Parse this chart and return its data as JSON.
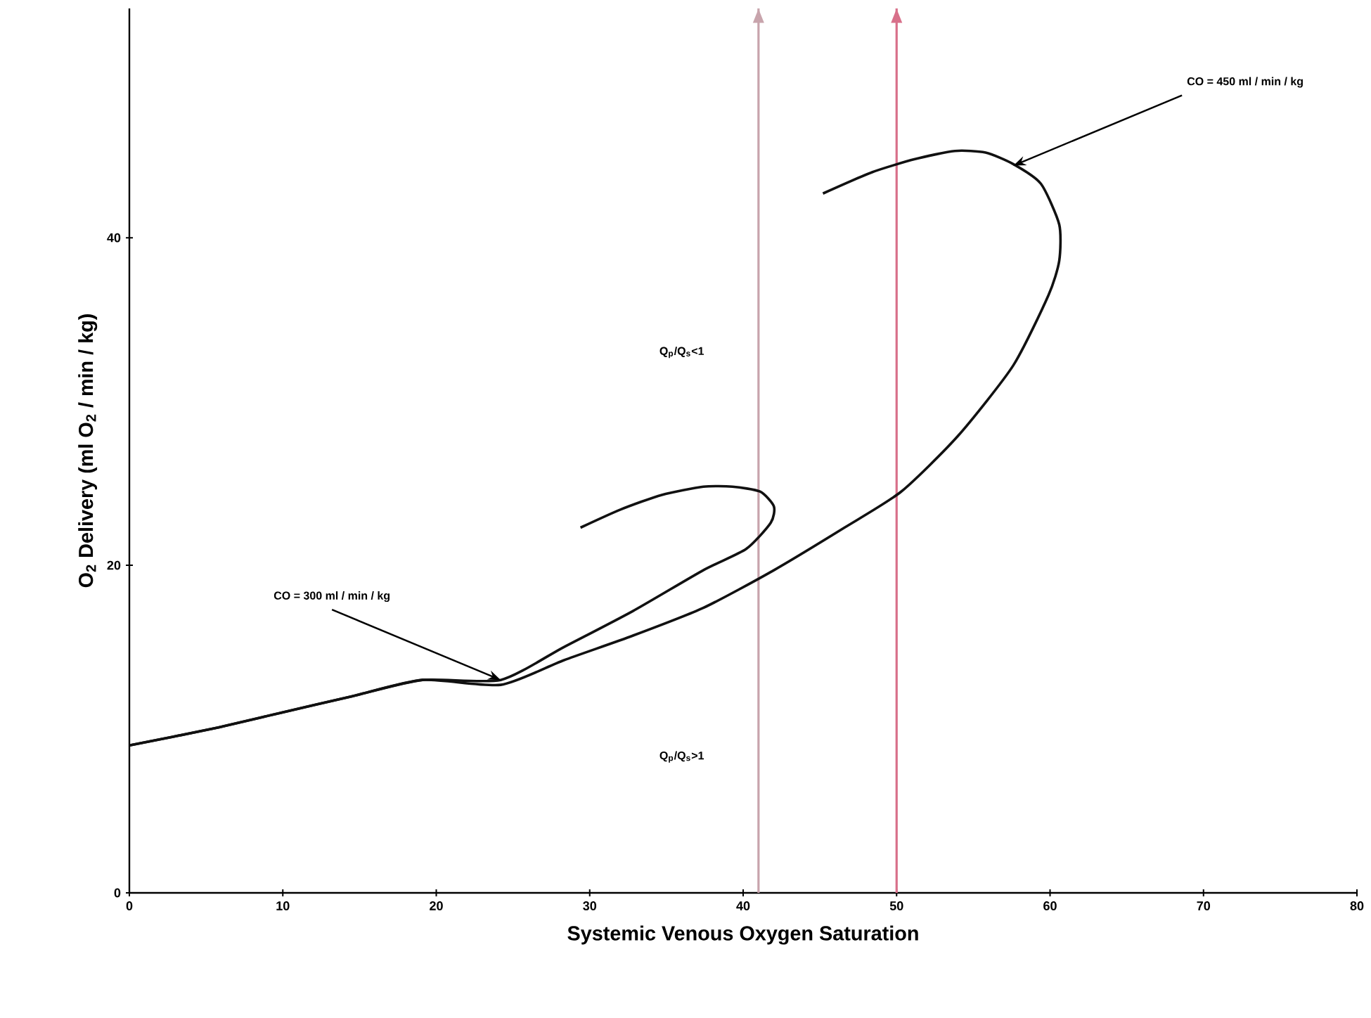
{
  "chart_data": {
    "type": "line",
    "xlabel": "Systemic Venous Oxygen Saturation",
    "ylabel": "O$_{2}$ Delivery (ml O$_{2}$ / min / kg)",
    "xlim": [
      0,
      80
    ],
    "ylim": [
      0,
      54
    ],
    "xticks": [
      0,
      10,
      20,
      30,
      40,
      50,
      60,
      70,
      80
    ],
    "yticks": [
      0,
      20,
      40
    ],
    "marker": "none",
    "line_style": "solid",
    "series": [
      {
        "color": "#111111",
        "x": [
          0,
          5.3,
          9.9,
          14.5,
          19.1,
          24.2,
          28.3,
          32.8,
          37.4,
          40.2,
          41.8,
          42.0,
          41.1,
          39.3,
          37.4,
          34.7,
          32.0,
          29.4
        ],
        "values": [
          9.0,
          10.0,
          11.0,
          12.0,
          13.0,
          13.0,
          15.0,
          17.2,
          19.7,
          21.0,
          22.6,
          23.6,
          24.5,
          24.8,
          24.8,
          24.3,
          23.4,
          22.3
        ]
      },
      {
        "color": "#111111",
        "x": [
          0,
          5.3,
          9.9,
          14.5,
          19.1,
          24.2,
          28.3,
          32.8,
          37.4,
          42.0,
          46.6,
          50.3,
          54.0,
          57.6,
          59.9,
          60.6,
          60.6,
          59.4,
          57.6,
          55.8,
          53.8,
          51.2,
          48.4,
          45.2
        ],
        "values": [
          9.0,
          10.0,
          11.0,
          12.0,
          13.0,
          12.7,
          14.2,
          15.7,
          17.4,
          19.7,
          22.3,
          24.5,
          27.9,
          32.2,
          36.5,
          38.6,
          40.8,
          43.3,
          44.5,
          45.2,
          45.3,
          44.8,
          44.0,
          42.7
        ]
      }
    ],
    "ref_lines": [
      {
        "axis": "x",
        "value": 41,
        "color": "#c8a4ac"
      },
      {
        "axis": "x",
        "value": 50,
        "color": "#d8708a"
      }
    ],
    "annotations": [
      {
        "text": "CO = 300 ml / min / kg",
        "x": 24.2,
        "y": 13.0
      },
      {
        "text": "CO = 450 ml / min / kg",
        "x": 57.6,
        "y": 44.4
      },
      "Q$_{p}$/Q$_{s}$<1",
      "Q$_{p}$/Q$_{s}$>1"
    ]
  }
}
